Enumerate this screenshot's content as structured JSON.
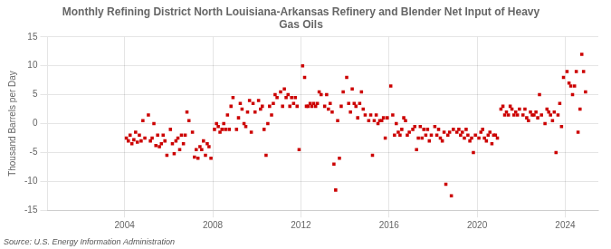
{
  "chart_data": {
    "type": "scatter",
    "title": "Monthly Refining District North Louisiana-Arkansas Refinery and Blender Net Input of Heavy\nGas Oils",
    "ylabel": "Thousand Barrels per Day",
    "source": "Source: U.S. Energy Information Administration",
    "color": "#cc0000",
    "marker": "square",
    "grid": true,
    "xlim": [
      2000.5,
      2025.5
    ],
    "xticks": [
      2004,
      2008,
      2012,
      2016,
      2020,
      2024
    ],
    "ylim": [
      -15,
      15
    ],
    "yticks": [
      -15,
      -10,
      -5,
      0,
      5,
      10,
      15
    ],
    "x": [
      2004.08,
      2004.17,
      2004.25,
      2004.33,
      2004.42,
      2004.5,
      2004.58,
      2004.67,
      2004.75,
      2004.83,
      2004.92,
      2005.08,
      2005.17,
      2005.25,
      2005.33,
      2005.42,
      2005.5,
      2005.58,
      2005.67,
      2005.75,
      2005.83,
      2005.92,
      2006.08,
      2006.17,
      2006.25,
      2006.33,
      2006.42,
      2006.5,
      2006.58,
      2006.67,
      2006.75,
      2006.83,
      2006.92,
      2007.08,
      2007.17,
      2007.25,
      2007.33,
      2007.42,
      2007.5,
      2007.58,
      2007.67,
      2007.75,
      2007.83,
      2007.92,
      2008.08,
      2008.17,
      2008.25,
      2008.33,
      2008.42,
      2008.5,
      2008.58,
      2008.67,
      2008.75,
      2008.83,
      2008.92,
      2009.08,
      2009.17,
      2009.25,
      2009.33,
      2009.42,
      2009.5,
      2009.58,
      2009.67,
      2009.75,
      2009.83,
      2009.92,
      2010.08,
      2010.17,
      2010.25,
      2010.33,
      2010.42,
      2010.5,
      2010.58,
      2010.67,
      2010.75,
      2010.83,
      2010.92,
      2011.08,
      2011.17,
      2011.25,
      2011.33,
      2011.42,
      2011.5,
      2011.58,
      2011.67,
      2011.75,
      2011.83,
      2011.92,
      2012.08,
      2012.17,
      2012.25,
      2012.33,
      2012.42,
      2012.5,
      2012.58,
      2012.67,
      2012.75,
      2012.83,
      2012.92,
      2013.08,
      2013.17,
      2013.25,
      2013.33,
      2013.42,
      2013.5,
      2013.58,
      2013.67,
      2013.75,
      2013.83,
      2013.92,
      2014.08,
      2014.17,
      2014.25,
      2014.33,
      2014.42,
      2014.5,
      2014.58,
      2014.67,
      2014.75,
      2014.83,
      2014.92,
      2015.08,
      2015.17,
      2015.25,
      2015.33,
      2015.42,
      2015.5,
      2015.58,
      2015.67,
      2015.75,
      2015.83,
      2015.92,
      2016.08,
      2016.17,
      2016.25,
      2016.33,
      2016.42,
      2016.5,
      2016.58,
      2016.67,
      2016.75,
      2016.83,
      2016.92,
      2017.08,
      2017.17,
      2017.25,
      2017.33,
      2017.42,
      2017.5,
      2017.58,
      2017.67,
      2017.75,
      2017.83,
      2017.92,
      2018.08,
      2018.17,
      2018.25,
      2018.33,
      2018.42,
      2018.5,
      2018.58,
      2018.67,
      2018.75,
      2018.83,
      2018.92,
      2019.08,
      2019.17,
      2019.25,
      2019.33,
      2019.42,
      2019.5,
      2019.58,
      2019.67,
      2019.75,
      2019.83,
      2019.92,
      2020.08,
      2020.17,
      2020.25,
      2020.33,
      2020.42,
      2020.5,
      2020.58,
      2020.67,
      2020.75,
      2020.83,
      2020.92,
      2021.08,
      2021.17,
      2021.25,
      2021.33,
      2021.42,
      2021.5,
      2021.58,
      2021.67,
      2021.75,
      2021.83,
      2021.92,
      2022.08,
      2022.17,
      2022.25,
      2022.33,
      2022.42,
      2022.5,
      2022.58,
      2022.67,
      2022.75,
      2022.83,
      2022.92,
      2023.08,
      2023.17,
      2023.25,
      2023.33,
      2023.42,
      2023.5,
      2023.58,
      2023.67,
      2023.75,
      2023.83,
      2023.92,
      2024.08,
      2024.17,
      2024.25,
      2024.33,
      2024.42,
      2024.5,
      2024.58,
      2024.67,
      2024.75,
      2024.83,
      2024.92
    ],
    "values": [
      -2.5,
      -3.0,
      -2.0,
      -3.5,
      -2.8,
      -1.5,
      -3.2,
      -2.0,
      -3.0,
      0.5,
      -2.5,
      1.5,
      -3.0,
      -2.5,
      0.0,
      -3.8,
      -2.0,
      -4.0,
      -3.5,
      -2.0,
      -3.0,
      -5.5,
      -1.0,
      -3.5,
      -5.2,
      -3.0,
      -2.5,
      -4.5,
      -2.0,
      -3.5,
      -2.0,
      2.0,
      0.5,
      -1.5,
      -5.8,
      -4.5,
      -6.0,
      -4.0,
      -4.5,
      -3.0,
      -5.5,
      -3.5,
      -4.0,
      -6.0,
      -1.0,
      0.0,
      -0.5,
      -1.5,
      -1.0,
      0.0,
      -1.0,
      1.5,
      -1.0,
      3.0,
      4.5,
      -1.0,
      1.0,
      3.5,
      2.5,
      0.0,
      -0.5,
      2.0,
      4.0,
      -1.5,
      3.5,
      2.0,
      4.0,
      2.5,
      3.0,
      -1.0,
      -5.5,
      0.0,
      3.0,
      1.5,
      3.5,
      5.0,
      4.5,
      5.5,
      3.0,
      6.0,
      4.5,
      5.0,
      3.0,
      4.5,
      3.5,
      4.5,
      3.0,
      -4.5,
      10.0,
      8.0,
      3.0,
      3.0,
      3.5,
      3.0,
      3.5,
      3.0,
      3.5,
      5.5,
      5.0,
      3.0,
      5.0,
      2.5,
      3.5,
      2.0,
      -7.0,
      -11.5,
      0.5,
      -6.0,
      3.0,
      5.5,
      8.0,
      3.5,
      2.0,
      6.0,
      3.5,
      3.0,
      1.0,
      3.5,
      5.5,
      2.5,
      1.5,
      0.5,
      1.5,
      -5.5,
      0.5,
      1.5,
      0.0,
      0.5,
      0.5,
      1.0,
      -2.5,
      1.0,
      6.5,
      1.5,
      -2.0,
      0.0,
      -1.5,
      -2.0,
      -1.0,
      1.0,
      0.5,
      -2.0,
      -1.5,
      -1.0,
      -0.5,
      -4.5,
      -2.5,
      -0.5,
      -2.5,
      -1.0,
      -2.0,
      -1.0,
      -3.0,
      -2.0,
      -0.5,
      -2.0,
      -1.0,
      -2.5,
      -3.0,
      -1.5,
      -10.5,
      -2.0,
      -1.5,
      -12.5,
      -1.0,
      -1.5,
      -1.0,
      -2.0,
      -1.5,
      -2.5,
      -1.0,
      -2.0,
      -3.0,
      -2.5,
      -5.0,
      -2.0,
      -2.5,
      -1.5,
      -1.0,
      -2.5,
      -3.0,
      -2.0,
      -1.5,
      -3.5,
      -2.0,
      -2.0,
      -2.5,
      2.5,
      3.0,
      1.5,
      2.0,
      1.5,
      3.0,
      2.5,
      1.5,
      2.0,
      1.5,
      2.5,
      1.5,
      2.5,
      1.0,
      0.5,
      2.0,
      1.5,
      1.5,
      2.0,
      1.0,
      5.0,
      1.5,
      0.0,
      2.5,
      2.0,
      1.5,
      0.5,
      2.0,
      -5.0,
      1.5,
      3.5,
      -0.5,
      8.0,
      9.0,
      7.0,
      6.5,
      5.0,
      6.5,
      9.0,
      -1.5,
      2.5,
      12.0,
      9.0,
      5.5
    ]
  }
}
